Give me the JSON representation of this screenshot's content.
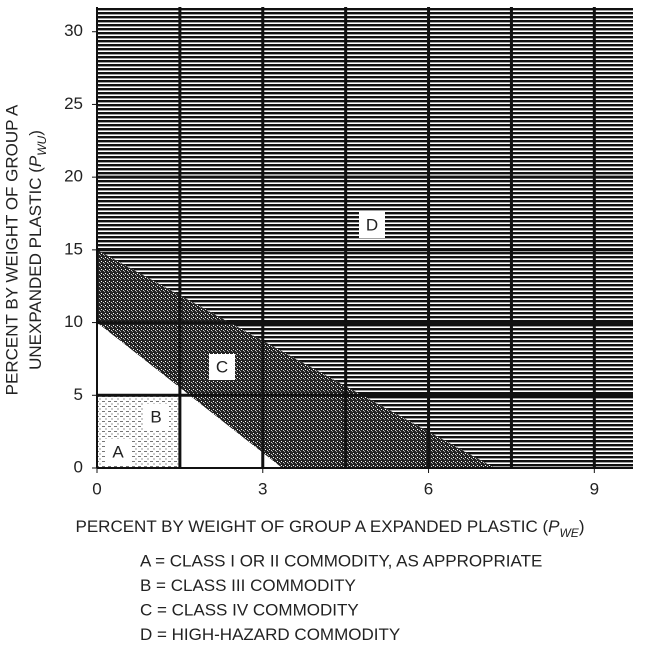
{
  "chart_data": {
    "type": "region",
    "x_label": {
      "text": "PERCENT BY WEIGHT OF GROUP A EXPANDED PLASTIC (",
      "symbol": "P",
      "subscript": "WE",
      "close": ")"
    },
    "y_label": {
      "line1": "PERCENT BY WEIGHT OF GROUP A",
      "text": "UNEXPANDED PLASTIC (",
      "symbol": "P",
      "subscript": "WU",
      "close": ")"
    },
    "xlim": [
      0,
      9.7
    ],
    "ylim": [
      0,
      31.7
    ],
    "xticks": [
      0,
      3,
      6,
      9
    ],
    "yticks": [
      0,
      5,
      10,
      15,
      20,
      25,
      30
    ],
    "xgrid": [
      1.5,
      3,
      4.5,
      6,
      7.5,
      9
    ],
    "ygrid": [
      5,
      10,
      15,
      20
    ],
    "regions": [
      {
        "label": "D",
        "x": [
          0,
          7.2,
          9.7,
          9.7,
          0
        ],
        "y": [
          15,
          0,
          0,
          31.7,
          31.7
        ]
      },
      {
        "label": "C",
        "x": [
          0,
          0,
          7.2,
          3.35
        ],
        "y": [
          10,
          15,
          0,
          0
        ]
      },
      {
        "label": "B",
        "x": [
          0,
          0,
          3.35,
          1.5,
          1.5
        ],
        "y": [
          5,
          10,
          0,
          0,
          5
        ]
      },
      {
        "label": "A",
        "x": [
          0,
          1.5,
          1.5,
          0
        ],
        "y": [
          0,
          0,
          5,
          5
        ]
      }
    ],
    "legend": [
      "A = CLASS I OR II COMMODITY, AS APPROPRIATE",
      "B = CLASS III COMMODITY",
      "C = CLASS IV COMMODITY",
      "D = HIGH-HAZARD COMMODITY"
    ]
  }
}
